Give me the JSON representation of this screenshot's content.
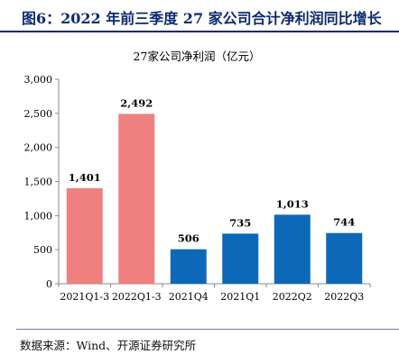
{
  "figure": {
    "title": "图6：2022 年前三季度 27 家公司合计净利润同比增长",
    "source": "数据来源：Wind、开源证券研究所"
  },
  "colors": {
    "highlight": "#f08080",
    "normal": "#0d69b8",
    "title": "#0b2a6f",
    "axis": "#888888"
  },
  "chart_data": {
    "type": "bar",
    "title": "27家公司净利润（亿元）",
    "xlabel": "",
    "ylabel": "",
    "categories": [
      "2021Q1-3",
      "2022Q1-3",
      "2021Q4",
      "2021Q1",
      "2022Q2",
      "2022Q3"
    ],
    "values": [
      1401,
      2492,
      506,
      735,
      1013,
      744
    ],
    "value_labels": [
      "1,401",
      "2,492",
      "506",
      "735",
      "1,013",
      "744"
    ],
    "bar_colors": [
      "#f08080",
      "#f08080",
      "#0d69b8",
      "#0d69b8",
      "#0d69b8",
      "#0d69b8"
    ],
    "ylim": [
      0,
      3000
    ],
    "yticks": [
      0,
      500,
      1000,
      1500,
      2000,
      2500,
      3000
    ],
    "ytick_labels": [
      "0",
      "500",
      "1,000",
      "1,500",
      "2,000",
      "2,500",
      "3,000"
    ],
    "grid": false,
    "legend": "none"
  }
}
